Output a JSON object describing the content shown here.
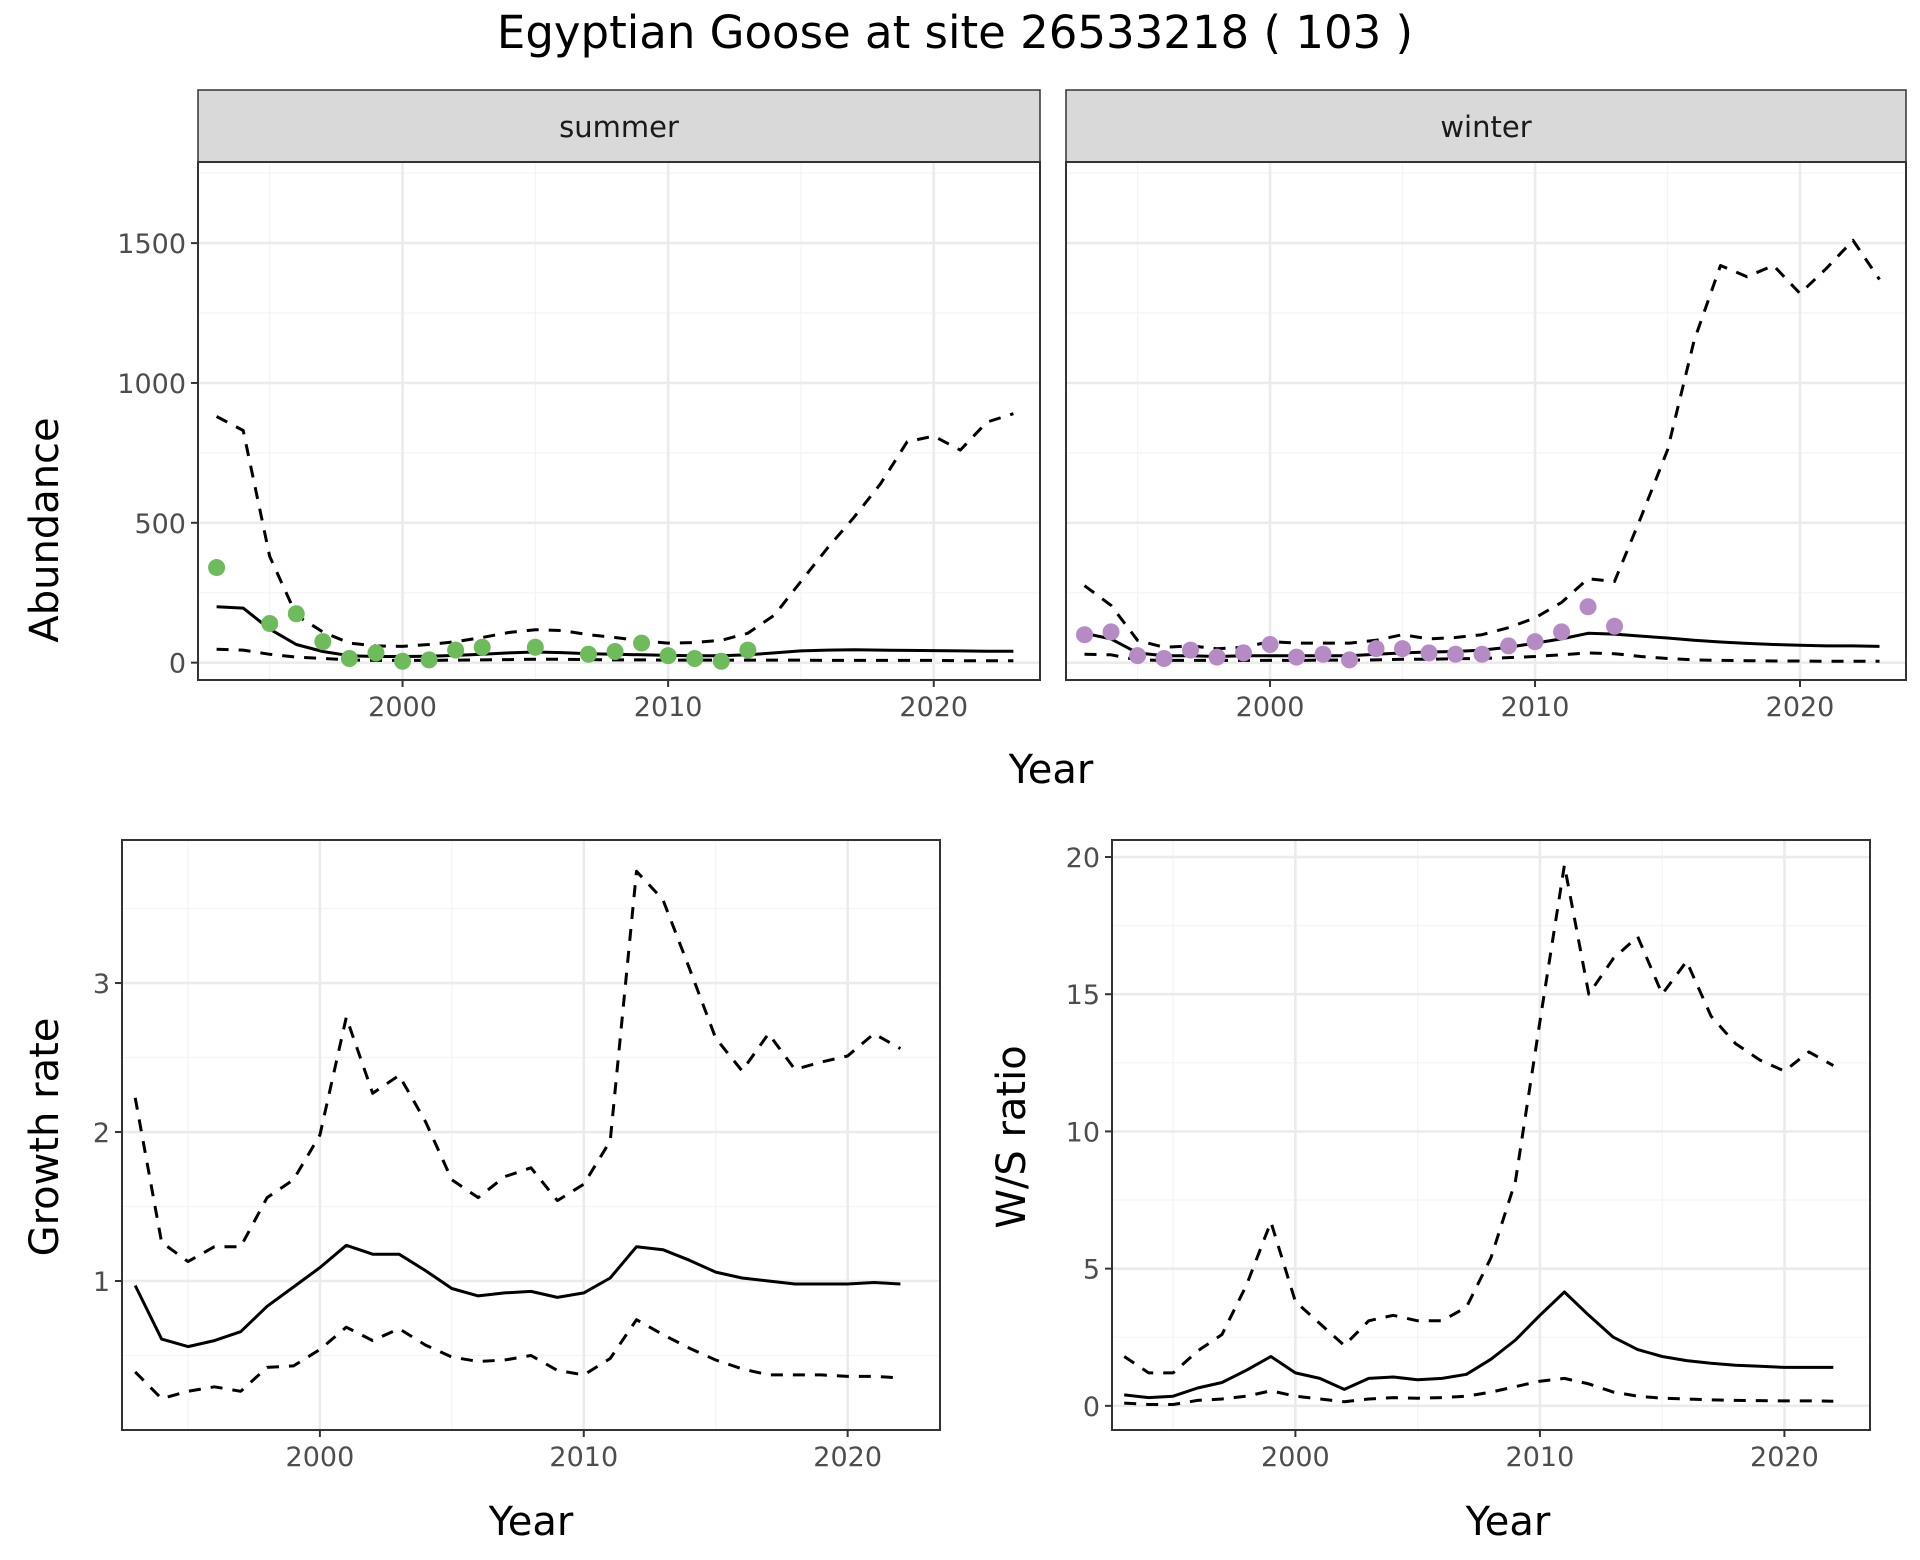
{
  "title": "Egyptian Goose at site 26533218 ( 103 )",
  "colors": {
    "summer_points": "#6dbb5b",
    "winter_points": "#b68ac5",
    "lines": "#000000",
    "strip_fill": "#d9d9d9",
    "grid_major": "#ebebeb",
    "grid_minor": "#f4f4f4"
  },
  "chart_data": [
    {
      "id": "summer",
      "type": "line",
      "panel": "facet",
      "strip_label": "summer",
      "ylabel": "Abundance",
      "xlim": [
        1992.3,
        2024.0
      ],
      "ylim": [
        -62,
        1790
      ],
      "x_ticks": [
        2000,
        2010,
        2020
      ],
      "y_ticks": [
        0,
        500,
        1000,
        1500
      ],
      "grid": true,
      "series": [
        {
          "role": "estimate",
          "style": "solid",
          "x": [
            1993,
            1994,
            1995,
            1996,
            1997,
            1998,
            1999,
            2000,
            2001,
            2002,
            2003,
            2004,
            2005,
            2006,
            2007,
            2008,
            2009,
            2010,
            2011,
            2012,
            2013,
            2014,
            2015,
            2016,
            2017,
            2018,
            2019,
            2020,
            2021,
            2022,
            2023
          ],
          "y": [
            200,
            195,
            120,
            65,
            40,
            25,
            22,
            22,
            23,
            26,
            30,
            35,
            38,
            36,
            32,
            30,
            28,
            26,
            25,
            25,
            28,
            35,
            42,
            45,
            46,
            45,
            44,
            43,
            42,
            41,
            41
          ]
        },
        {
          "role": "upper",
          "style": "dashed",
          "x": [
            1993,
            1994,
            1995,
            1996,
            1997,
            1998,
            1999,
            2000,
            2001,
            2002,
            2003,
            2004,
            2005,
            2006,
            2007,
            2008,
            2009,
            2010,
            2011,
            2012,
            2013,
            2014,
            2015,
            2016,
            2017,
            2018,
            2019,
            2020,
            2021,
            2022,
            2023
          ],
          "y": [
            880,
            830,
            380,
            170,
            110,
            70,
            60,
            58,
            65,
            75,
            90,
            108,
            118,
            115,
            100,
            90,
            78,
            70,
            72,
            80,
            105,
            170,
            290,
            410,
            520,
            640,
            790,
            810,
            760,
            860,
            890
          ]
        },
        {
          "role": "lower",
          "style": "dashed",
          "x": [
            1993,
            1994,
            1995,
            1996,
            1997,
            1998,
            1999,
            2000,
            2001,
            2002,
            2003,
            2004,
            2005,
            2006,
            2007,
            2008,
            2009,
            2010,
            2011,
            2012,
            2013,
            2014,
            2015,
            2016,
            2017,
            2018,
            2019,
            2020,
            2021,
            2022,
            2023
          ],
          "y": [
            48,
            45,
            30,
            20,
            15,
            10,
            8,
            8,
            8,
            9,
            10,
            11,
            12,
            12,
            11,
            10,
            10,
            9,
            9,
            9,
            9,
            9,
            9,
            8,
            8,
            8,
            8,
            8,
            7,
            7,
            7
          ]
        }
      ],
      "points": {
        "x": [
          1993,
          1995,
          1996,
          1997,
          1998,
          1999,
          2000,
          2001,
          2002,
          2003,
          2005,
          2007,
          2008,
          2009,
          2010,
          2011,
          2012,
          2013
        ],
        "y": [
          340,
          140,
          175,
          75,
          15,
          35,
          5,
          10,
          45,
          55,
          55,
          30,
          40,
          70,
          25,
          15,
          5,
          45
        ]
      }
    },
    {
      "id": "winter",
      "type": "line",
      "panel": "facet",
      "strip_label": "winter",
      "xlim": [
        1992.3,
        2024.0
      ],
      "ylim": [
        -62,
        1790
      ],
      "x_ticks": [
        2000,
        2010,
        2020
      ],
      "y_ticks": [
        0,
        500,
        1000,
        1500
      ],
      "grid": true,
      "series": [
        {
          "role": "estimate",
          "style": "solid",
          "x": [
            1993,
            1994,
            1995,
            1996,
            1997,
            1998,
            1999,
            2000,
            2001,
            2002,
            2003,
            2004,
            2005,
            2006,
            2007,
            2008,
            2009,
            2010,
            2011,
            2012,
            2013,
            2014,
            2015,
            2016,
            2017,
            2018,
            2019,
            2020,
            2021,
            2022,
            2023
          ],
          "y": [
            105,
            85,
            35,
            25,
            25,
            22,
            25,
            25,
            25,
            25,
            25,
            30,
            35,
            38,
            40,
            45,
            55,
            70,
            85,
            105,
            102,
            95,
            88,
            80,
            74,
            69,
            65,
            62,
            60,
            60,
            58
          ]
        },
        {
          "role": "upper",
          "style": "dashed",
          "x": [
            1993,
            1994,
            1995,
            1996,
            1997,
            1998,
            1999,
            2000,
            2001,
            2002,
            2003,
            2004,
            2005,
            2006,
            2007,
            2008,
            2009,
            2010,
            2011,
            2012,
            2013,
            2014,
            2015,
            2016,
            2017,
            2018,
            2019,
            2020,
            2021,
            2022,
            2023
          ],
          "y": [
            275,
            205,
            80,
            55,
            60,
            50,
            55,
            75,
            70,
            70,
            70,
            80,
            100,
            85,
            90,
            100,
            125,
            160,
            215,
            300,
            290,
            520,
            760,
            1150,
            1420,
            1380,
            1420,
            1320,
            1410,
            1510,
            1370
          ]
        },
        {
          "role": "lower",
          "style": "dashed",
          "x": [
            1993,
            1994,
            1995,
            1996,
            1997,
            1998,
            1999,
            2000,
            2001,
            2002,
            2003,
            2004,
            2005,
            2006,
            2007,
            2008,
            2009,
            2010,
            2011,
            2012,
            2013,
            2014,
            2015,
            2016,
            2017,
            2018,
            2019,
            2020,
            2021,
            2022,
            2023
          ],
          "y": [
            30,
            28,
            10,
            8,
            8,
            8,
            8,
            8,
            8,
            9,
            9,
            10,
            12,
            12,
            14,
            15,
            18,
            22,
            28,
            35,
            32,
            22,
            15,
            10,
            8,
            7,
            6,
            6,
            5,
            5,
            5
          ]
        }
      ],
      "points": {
        "x": [
          1993,
          1994,
          1995,
          1996,
          1997,
          1998,
          1999,
          2000,
          2001,
          2002,
          2003,
          2004,
          2005,
          2006,
          2007,
          2008,
          2009,
          2010,
          2011,
          2012,
          2013
        ],
        "y": [
          100,
          110,
          25,
          15,
          45,
          20,
          35,
          65,
          20,
          30,
          10,
          50,
          50,
          35,
          30,
          30,
          60,
          75,
          110,
          200,
          130
        ]
      }
    },
    {
      "id": "growth",
      "type": "line",
      "ylabel": "Growth rate",
      "xlabel": "Year",
      "xlim": [
        1992.5,
        2023.5
      ],
      "ylim": [
        0.0,
        3.96
      ],
      "x_ticks": [
        2000,
        2010,
        2020
      ],
      "y_ticks": [
        1,
        2,
        3
      ],
      "grid": true,
      "series": [
        {
          "role": "estimate",
          "style": "solid",
          "x": [
            1993,
            1994,
            1995,
            1996,
            1997,
            1998,
            1999,
            2000,
            2001,
            2002,
            2003,
            2004,
            2005,
            2006,
            2007,
            2008,
            2009,
            2010,
            2011,
            2012,
            2013,
            2014,
            2015,
            2016,
            2017,
            2018,
            2019,
            2020,
            2021,
            2022
          ],
          "y": [
            0.97,
            0.61,
            0.56,
            0.6,
            0.66,
            0.83,
            0.96,
            1.09,
            1.24,
            1.18,
            1.18,
            1.07,
            0.95,
            0.9,
            0.92,
            0.93,
            0.89,
            0.92,
            1.02,
            1.23,
            1.21,
            1.14,
            1.06,
            1.02,
            1.0,
            0.98,
            0.98,
            0.98,
            0.99,
            0.98
          ]
        },
        {
          "role": "upper",
          "style": "dashed",
          "x": [
            1993,
            1994,
            1995,
            1996,
            1997,
            1998,
            1999,
            2000,
            2001,
            2002,
            2003,
            2004,
            2005,
            2006,
            2007,
            2008,
            2009,
            2010,
            2011,
            2012,
            2013,
            2014,
            2015,
            2016,
            2017,
            2018,
            2019,
            2020,
            2021,
            2022
          ],
          "y": [
            2.23,
            1.26,
            1.13,
            1.23,
            1.23,
            1.56,
            1.68,
            1.98,
            2.77,
            2.26,
            2.38,
            2.07,
            1.68,
            1.56,
            1.7,
            1.76,
            1.54,
            1.65,
            1.94,
            3.75,
            3.56,
            3.1,
            2.63,
            2.41,
            2.66,
            2.42,
            2.47,
            2.51,
            2.66,
            2.56
          ]
        },
        {
          "role": "lower",
          "style": "dashed",
          "x": [
            1993,
            1994,
            1995,
            1996,
            1997,
            1998,
            1999,
            2000,
            2001,
            2002,
            2003,
            2004,
            2005,
            2006,
            2007,
            2008,
            2009,
            2010,
            2011,
            2012,
            2013,
            2014,
            2015,
            2016,
            2017,
            2018,
            2019,
            2020,
            2021,
            2022
          ],
          "y": [
            0.39,
            0.21,
            0.26,
            0.29,
            0.26,
            0.42,
            0.43,
            0.54,
            0.69,
            0.6,
            0.68,
            0.57,
            0.49,
            0.46,
            0.47,
            0.5,
            0.4,
            0.37,
            0.48,
            0.74,
            0.64,
            0.55,
            0.47,
            0.41,
            0.37,
            0.37,
            0.37,
            0.36,
            0.36,
            0.35
          ]
        }
      ]
    },
    {
      "id": "ratio",
      "type": "line",
      "ylabel": "W/S ratio",
      "xlabel": "Year",
      "xlim": [
        1992.5,
        2023.5
      ],
      "ylim": [
        -0.88,
        20.62
      ],
      "x_ticks": [
        2000,
        2010,
        2020
      ],
      "y_ticks": [
        0,
        5,
        10,
        15,
        20
      ],
      "grid": true,
      "series": [
        {
          "role": "estimate",
          "style": "solid",
          "x": [
            1993,
            1994,
            1995,
            1996,
            1997,
            1998,
            1999,
            2000,
            2001,
            2002,
            2003,
            2004,
            2005,
            2006,
            2007,
            2008,
            2009,
            2010,
            2011,
            2012,
            2013,
            2014,
            2015,
            2016,
            2017,
            2018,
            2019,
            2020,
            2021,
            2022
          ],
          "y": [
            0.4,
            0.3,
            0.35,
            0.65,
            0.85,
            1.3,
            1.8,
            1.2,
            1.0,
            0.6,
            1.0,
            1.05,
            0.95,
            1.0,
            1.15,
            1.7,
            2.4,
            3.3,
            4.15,
            3.3,
            2.5,
            2.05,
            1.8,
            1.65,
            1.55,
            1.48,
            1.44,
            1.4,
            1.4,
            1.4
          ]
        },
        {
          "role": "upper",
          "style": "dashed",
          "x": [
            1993,
            1994,
            1995,
            1996,
            1997,
            1998,
            1999,
            2000,
            2001,
            2002,
            2003,
            2004,
            2005,
            2006,
            2007,
            2008,
            2009,
            2010,
            2011,
            2012,
            2013,
            2014,
            2015,
            2016,
            2017,
            2018,
            2019,
            2020,
            2021,
            2022
          ],
          "y": [
            1.8,
            1.2,
            1.2,
            2.0,
            2.6,
            4.4,
            6.7,
            3.8,
            3.0,
            2.2,
            3.1,
            3.3,
            3.1,
            3.1,
            3.6,
            5.4,
            8.2,
            14.0,
            19.7,
            15.0,
            16.3,
            17.1,
            15.0,
            16.2,
            14.2,
            13.2,
            12.6,
            12.2,
            12.9,
            12.4
          ]
        },
        {
          "role": "lower",
          "style": "dashed",
          "x": [
            1993,
            1994,
            1995,
            1996,
            1997,
            1998,
            1999,
            2000,
            2001,
            2002,
            2003,
            2004,
            2005,
            2006,
            2007,
            2008,
            2009,
            2010,
            2011,
            2012,
            2013,
            2014,
            2015,
            2016,
            2017,
            2018,
            2019,
            2020,
            2021,
            2022
          ],
          "y": [
            0.1,
            0.05,
            0.05,
            0.2,
            0.25,
            0.35,
            0.55,
            0.35,
            0.25,
            0.15,
            0.25,
            0.3,
            0.28,
            0.3,
            0.35,
            0.5,
            0.7,
            0.9,
            1.0,
            0.8,
            0.5,
            0.35,
            0.28,
            0.25,
            0.22,
            0.2,
            0.19,
            0.18,
            0.18,
            0.17
          ]
        }
      ]
    }
  ],
  "shared_xlabel_top": "Year",
  "tick_labels": {
    "years": [
      "2000",
      "2010",
      "2020"
    ],
    "abundance": [
      "0",
      "500",
      "1000",
      "1500"
    ],
    "growth": [
      "1",
      "2",
      "3"
    ],
    "ratio": [
      "0",
      "5",
      "10",
      "15",
      "20"
    ]
  }
}
